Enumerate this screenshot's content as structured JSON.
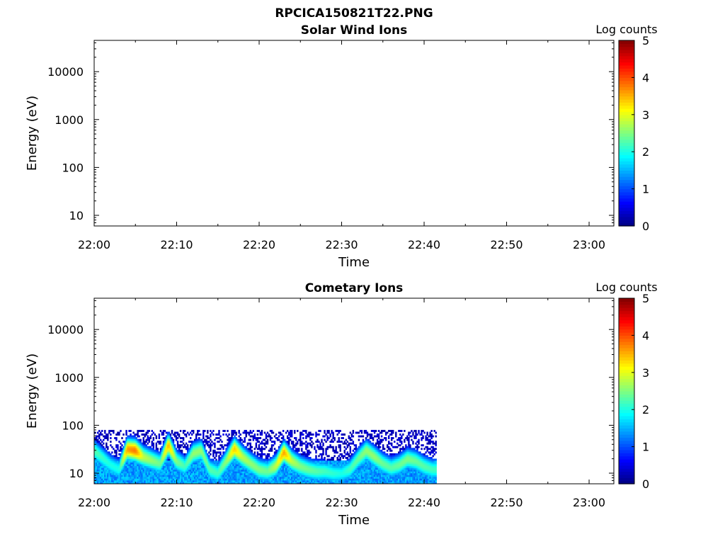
{
  "figure": {
    "title": "RPCICA150821T22.PNG"
  },
  "chart_data": [
    {
      "type": "heatmap",
      "title": "Solar Wind Ions",
      "xlabel": "Time",
      "ylabel": "Energy (eV)",
      "x_ticks": [
        "22:00",
        "22:10",
        "22:20",
        "22:30",
        "22:40",
        "22:50",
        "23:00"
      ],
      "xlim": [
        "22:00",
        "23:03"
      ],
      "y_scale": "log",
      "y_ticks": [
        10,
        100,
        1000,
        10000
      ],
      "y_tick_labels": [
        "10",
        "100",
        "1000",
        "10000"
      ],
      "ylim": [
        6,
        45000
      ],
      "colorbar": {
        "label": "Log counts",
        "ticks": [
          "0",
          "1",
          "2",
          "3",
          "4",
          "5"
        ],
        "range": [
          0,
          5
        ],
        "colormap": "jet"
      },
      "data_coverage": "none",
      "values": []
    },
    {
      "type": "heatmap",
      "title": "Cometary Ions",
      "xlabel": "Time",
      "ylabel": "Energy (eV)",
      "x_ticks": [
        "22:00",
        "22:10",
        "22:20",
        "22:30",
        "22:40",
        "22:50",
        "23:00"
      ],
      "xlim": [
        "22:00",
        "23:03"
      ],
      "y_scale": "log",
      "y_ticks": [
        10,
        100,
        1000,
        10000
      ],
      "y_tick_labels": [
        "10",
        "100",
        "1000",
        "10000"
      ],
      "ylim": [
        6,
        45000
      ],
      "colorbar": {
        "label": "Log counts",
        "ticks": [
          "0",
          "1",
          "2",
          "3",
          "4",
          "5"
        ],
        "range": [
          0,
          5
        ],
        "colormap": "jet"
      },
      "data_time_range": [
        "22:00",
        "22:41.5"
      ],
      "data_energy_range": [
        6,
        80
      ],
      "peak_energy_trace": [
        {
          "t": "22:00",
          "energy_eV": 30,
          "log_counts": 2.3
        },
        {
          "t": "22:02",
          "energy_eV": 15,
          "log_counts": 2.0
        },
        {
          "t": "22:03",
          "energy_eV": 12,
          "log_counts": 2.0
        },
        {
          "t": "22:04",
          "energy_eV": 32,
          "log_counts": 3.6
        },
        {
          "t": "22:05",
          "energy_eV": 30,
          "log_counts": 3.8
        },
        {
          "t": "22:06",
          "energy_eV": 22,
          "log_counts": 2.8
        },
        {
          "t": "22:08",
          "energy_eV": 16,
          "log_counts": 2.4
        },
        {
          "t": "22:09",
          "energy_eV": 40,
          "log_counts": 3.5
        },
        {
          "t": "22:10",
          "energy_eV": 18,
          "log_counts": 2.5
        },
        {
          "t": "22:11",
          "energy_eV": 14,
          "log_counts": 2.2
        },
        {
          "t": "22:12",
          "energy_eV": 26,
          "log_counts": 2.6
        },
        {
          "t": "22:13",
          "energy_eV": 30,
          "log_counts": 2.6
        },
        {
          "t": "22:14",
          "energy_eV": 12,
          "log_counts": 2.3
        },
        {
          "t": "22:15",
          "energy_eV": 10,
          "log_counts": 2.2
        },
        {
          "t": "22:16",
          "energy_eV": 18,
          "log_counts": 2.6
        },
        {
          "t": "22:17",
          "energy_eV": 33,
          "log_counts": 3.4
        },
        {
          "t": "22:18",
          "energy_eV": 22,
          "log_counts": 2.8
        },
        {
          "t": "22:19",
          "energy_eV": 16,
          "log_counts": 2.6
        },
        {
          "t": "22:20",
          "energy_eV": 12,
          "log_counts": 2.5
        },
        {
          "t": "22:21",
          "energy_eV": 11,
          "log_counts": 2.4
        },
        {
          "t": "22:22",
          "energy_eV": 14,
          "log_counts": 2.8
        },
        {
          "t": "22:23",
          "energy_eV": 28,
          "log_counts": 3.6
        },
        {
          "t": "22:24",
          "energy_eV": 18,
          "log_counts": 2.8
        },
        {
          "t": "22:25",
          "energy_eV": 14,
          "log_counts": 2.5
        },
        {
          "t": "22:26",
          "energy_eV": 12,
          "log_counts": 2.4
        },
        {
          "t": "22:27",
          "energy_eV": 11,
          "log_counts": 2.3
        },
        {
          "t": "22:28",
          "energy_eV": 11,
          "log_counts": 2.2
        },
        {
          "t": "22:29",
          "energy_eV": 10,
          "log_counts": 2.1
        },
        {
          "t": "22:30",
          "energy_eV": 10,
          "log_counts": 2.0
        },
        {
          "t": "22:31",
          "energy_eV": 12,
          "log_counts": 2.2
        },
        {
          "t": "22:32",
          "energy_eV": 20,
          "log_counts": 2.4
        },
        {
          "t": "22:33",
          "energy_eV": 30,
          "log_counts": 2.6
        },
        {
          "t": "22:34",
          "energy_eV": 22,
          "log_counts": 2.6
        },
        {
          "t": "22:35",
          "energy_eV": 16,
          "log_counts": 2.4
        },
        {
          "t": "22:36",
          "energy_eV": 13,
          "log_counts": 2.3
        },
        {
          "t": "22:37",
          "energy_eV": 15,
          "log_counts": 2.4
        },
        {
          "t": "22:38",
          "energy_eV": 20,
          "log_counts": 2.5
        },
        {
          "t": "22:39",
          "energy_eV": 18,
          "log_counts": 2.4
        },
        {
          "t": "22:40",
          "energy_eV": 14,
          "log_counts": 2.3
        },
        {
          "t": "22:41",
          "energy_eV": 12,
          "log_counts": 2.2
        }
      ]
    }
  ]
}
